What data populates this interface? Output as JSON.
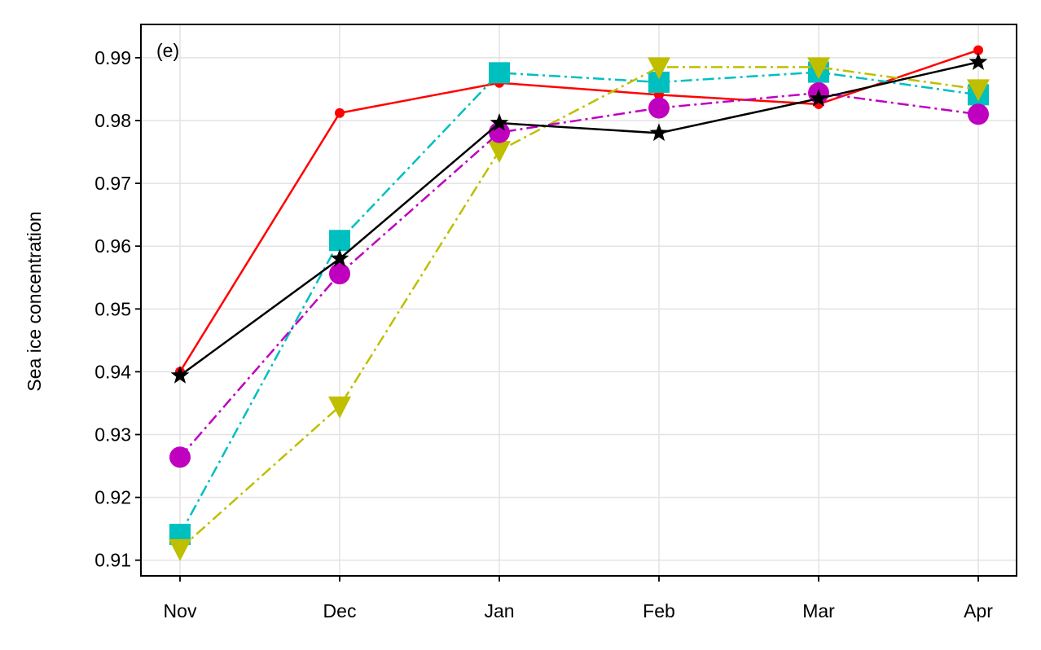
{
  "chart_data": {
    "type": "line",
    "panel_label": "(e)",
    "title": "",
    "xlabel": "",
    "ylabel": "Sea ice concentration",
    "categories": [
      "Nov",
      "Dec",
      "Jan",
      "Feb",
      "Mar",
      "Apr"
    ],
    "ylim": [
      0.9075,
      0.9953
    ],
    "yticks": [
      0.91,
      0.92,
      0.93,
      0.94,
      0.95,
      0.96,
      0.97,
      0.98,
      0.99
    ],
    "ytick_labels": [
      "0.91",
      "0.92",
      "0.93",
      "0.94",
      "0.95",
      "0.96",
      "0.97",
      "0.98",
      "0.99"
    ],
    "grid": true,
    "series": [
      {
        "color": "#ff0000",
        "marker": "circle-small",
        "linestyle": "solid",
        "values": [
          0.94,
          0.9812,
          0.986,
          0.9841,
          0.9826,
          0.9912
        ]
      },
      {
        "color": "#00bfbf",
        "marker": "square",
        "linestyle": "dashdot",
        "values": [
          0.9141,
          0.9609,
          0.9876,
          0.9861,
          0.9877,
          0.9841
        ]
      },
      {
        "color": "#bfbf00",
        "marker": "triangle-down",
        "linestyle": "dashdot",
        "values": [
          0.9118,
          0.9345,
          0.9752,
          0.9885,
          0.9885,
          0.985
        ]
      },
      {
        "color": "#bf00bf",
        "marker": "circle",
        "linestyle": "dashdot",
        "values": [
          0.9264,
          0.9556,
          0.9781,
          0.982,
          0.9844,
          0.981
        ]
      },
      {
        "color": "#000000",
        "marker": "star",
        "linestyle": "solid",
        "values": [
          0.9394,
          0.958,
          0.9796,
          0.978,
          0.9835,
          0.9893
        ]
      }
    ]
  }
}
